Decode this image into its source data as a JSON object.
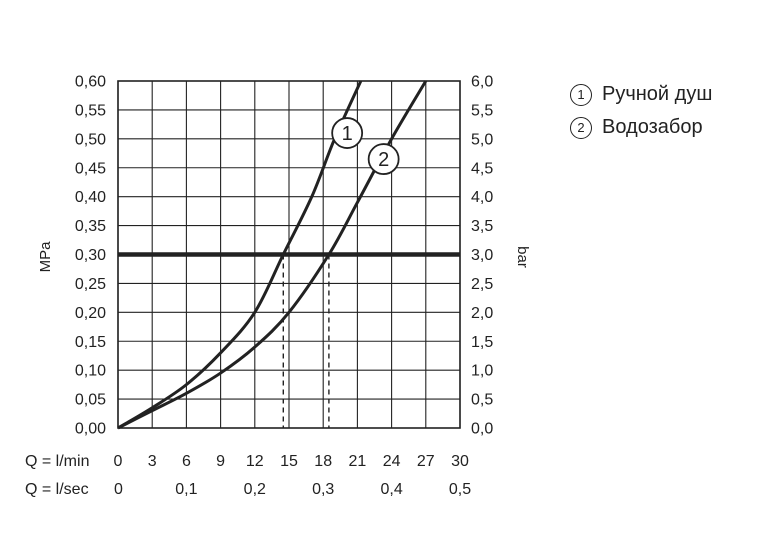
{
  "chart_data": {
    "type": "line",
    "ylabel": "MPa",
    "y2label": "bar",
    "ylim": [
      0,
      0.6
    ],
    "y2lim": [
      0,
      6.0
    ],
    "yticks": [
      "0,00",
      "0,05",
      "0,10",
      "0,15",
      "0,20",
      "0,25",
      "0,30",
      "0,35",
      "0,40",
      "0,45",
      "0,50",
      "0,55",
      "0,60"
    ],
    "y2ticks": [
      "0,0",
      "0,5",
      "1,0",
      "1,5",
      "2,0",
      "2,5",
      "3,0",
      "3,5",
      "4,0",
      "4,5",
      "5,0",
      "5,5",
      "6,0"
    ],
    "x_axes": [
      {
        "label": "Q = l/min",
        "ticks": [
          "0",
          "3",
          "6",
          "9",
          "12",
          "15",
          "18",
          "21",
          "24",
          "27",
          "30"
        ]
      },
      {
        "label": "Q = l/sec",
        "ticks": [
          "0",
          "0,1",
          "0,2",
          "0,3",
          "0,4",
          "0,5"
        ]
      }
    ],
    "xlim": [
      0,
      30
    ],
    "grid": true,
    "reference_line": {
      "y": 0.3
    },
    "series": [
      {
        "marker": "1",
        "name": "Ручной душ",
        "x": [
          0,
          3,
          6,
          9,
          12,
          14.5,
          17,
          19,
          21.3
        ],
        "y": [
          0,
          0.035,
          0.075,
          0.13,
          0.2,
          0.3,
          0.4,
          0.5,
          0.6
        ],
        "q_at_reference": 14.5
      },
      {
        "marker": "2",
        "name": "Водозабор",
        "x": [
          0,
          3,
          6,
          9,
          12,
          15,
          18.5,
          21,
          24,
          27
        ],
        "y": [
          0,
          0.03,
          0.06,
          0.095,
          0.14,
          0.2,
          0.3,
          0.39,
          0.5,
          0.6
        ],
        "q_at_reference": 18.5
      }
    ],
    "legend": "right"
  }
}
